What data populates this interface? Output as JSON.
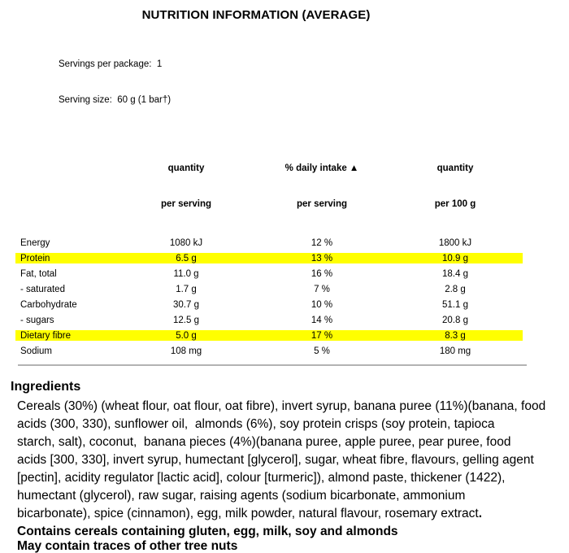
{
  "title": "NUTRITION INFORMATION (AVERAGE)",
  "serving_info": {
    "servings_per_package": "Servings per package:  1",
    "serving_size": "Serving size:  60 g (1 bar†)"
  },
  "table": {
    "columns": [
      {
        "line1": "quantity",
        "line2": "per serving"
      },
      {
        "line1": "% daily intake ▲",
        "line2": "per serving"
      },
      {
        "line1": "quantity",
        "line2": "per 100 g"
      }
    ],
    "rows": [
      {
        "nutrient": "Energy",
        "per_serving": "1080 kJ",
        "daily_intake": "12 %",
        "per_100g": "1800 kJ",
        "highlighted": false
      },
      {
        "nutrient": "Protein",
        "per_serving": "6.5 g",
        "daily_intake": "13 %",
        "per_100g": "10.9 g",
        "highlighted": true
      },
      {
        "nutrient": "Fat, total",
        "per_serving": "11.0 g",
        "daily_intake": "16 %",
        "per_100g": "18.4 g",
        "highlighted": false
      },
      {
        "nutrient": "- saturated",
        "per_serving": "1.7 g",
        "daily_intake": "7 %",
        "per_100g": "2.8 g",
        "highlighted": false
      },
      {
        "nutrient": "Carbohydrate",
        "per_serving": "30.7 g",
        "daily_intake": "10 %",
        "per_100g": "51.1 g",
        "highlighted": false
      },
      {
        "nutrient": "- sugars",
        "per_serving": "12.5 g",
        "daily_intake": "14 %",
        "per_100g": "20.8 g",
        "highlighted": false
      },
      {
        "nutrient": "Dietary fibre",
        "per_serving": "5.0 g",
        "daily_intake": "17 %",
        "per_100g": "8.3 g",
        "highlighted": true
      },
      {
        "nutrient": "Sodium",
        "per_serving": "108 mg",
        "daily_intake": "5 %",
        "per_100g": "180 mg",
        "highlighted": false
      }
    ]
  },
  "ingredients": {
    "heading": "Ingredients",
    "lines": [
      "Cereals (30%) (wheat flour, oat flour, oat fibre), invert syrup, banana puree (11%)(banana, food",
      "acids (300, 330), sunflower oil,  almonds (6%), soy protein crisps (soy protein, tapioca",
      "starch, salt), coconut,  banana pieces (4%)(banana puree, apple puree, pear puree, food",
      "acids [300, 330], invert syrup, humectant [glycerol], sugar, wheat fibre, flavours, gelling agent",
      "[pectin], acidity regulator [lactic acid], colour [turmeric]), almond paste, thickener (1422),",
      "humectant (glycerol), raw sugar, raising agents (sodium bicarbonate, ammonium",
      "bicarbonate), spice (cinnamon), egg, milk powder, natural flavour, rosemary extract"
    ],
    "final_period": "."
  },
  "allergens": {
    "contains": "Contains cereals containing gluten, egg, milk, soy and almonds",
    "may_contain": "May contain traces of other tree nuts"
  },
  "colors": {
    "highlight": "#ffff00",
    "divider": "#b3b3b3",
    "text": "#000000"
  }
}
